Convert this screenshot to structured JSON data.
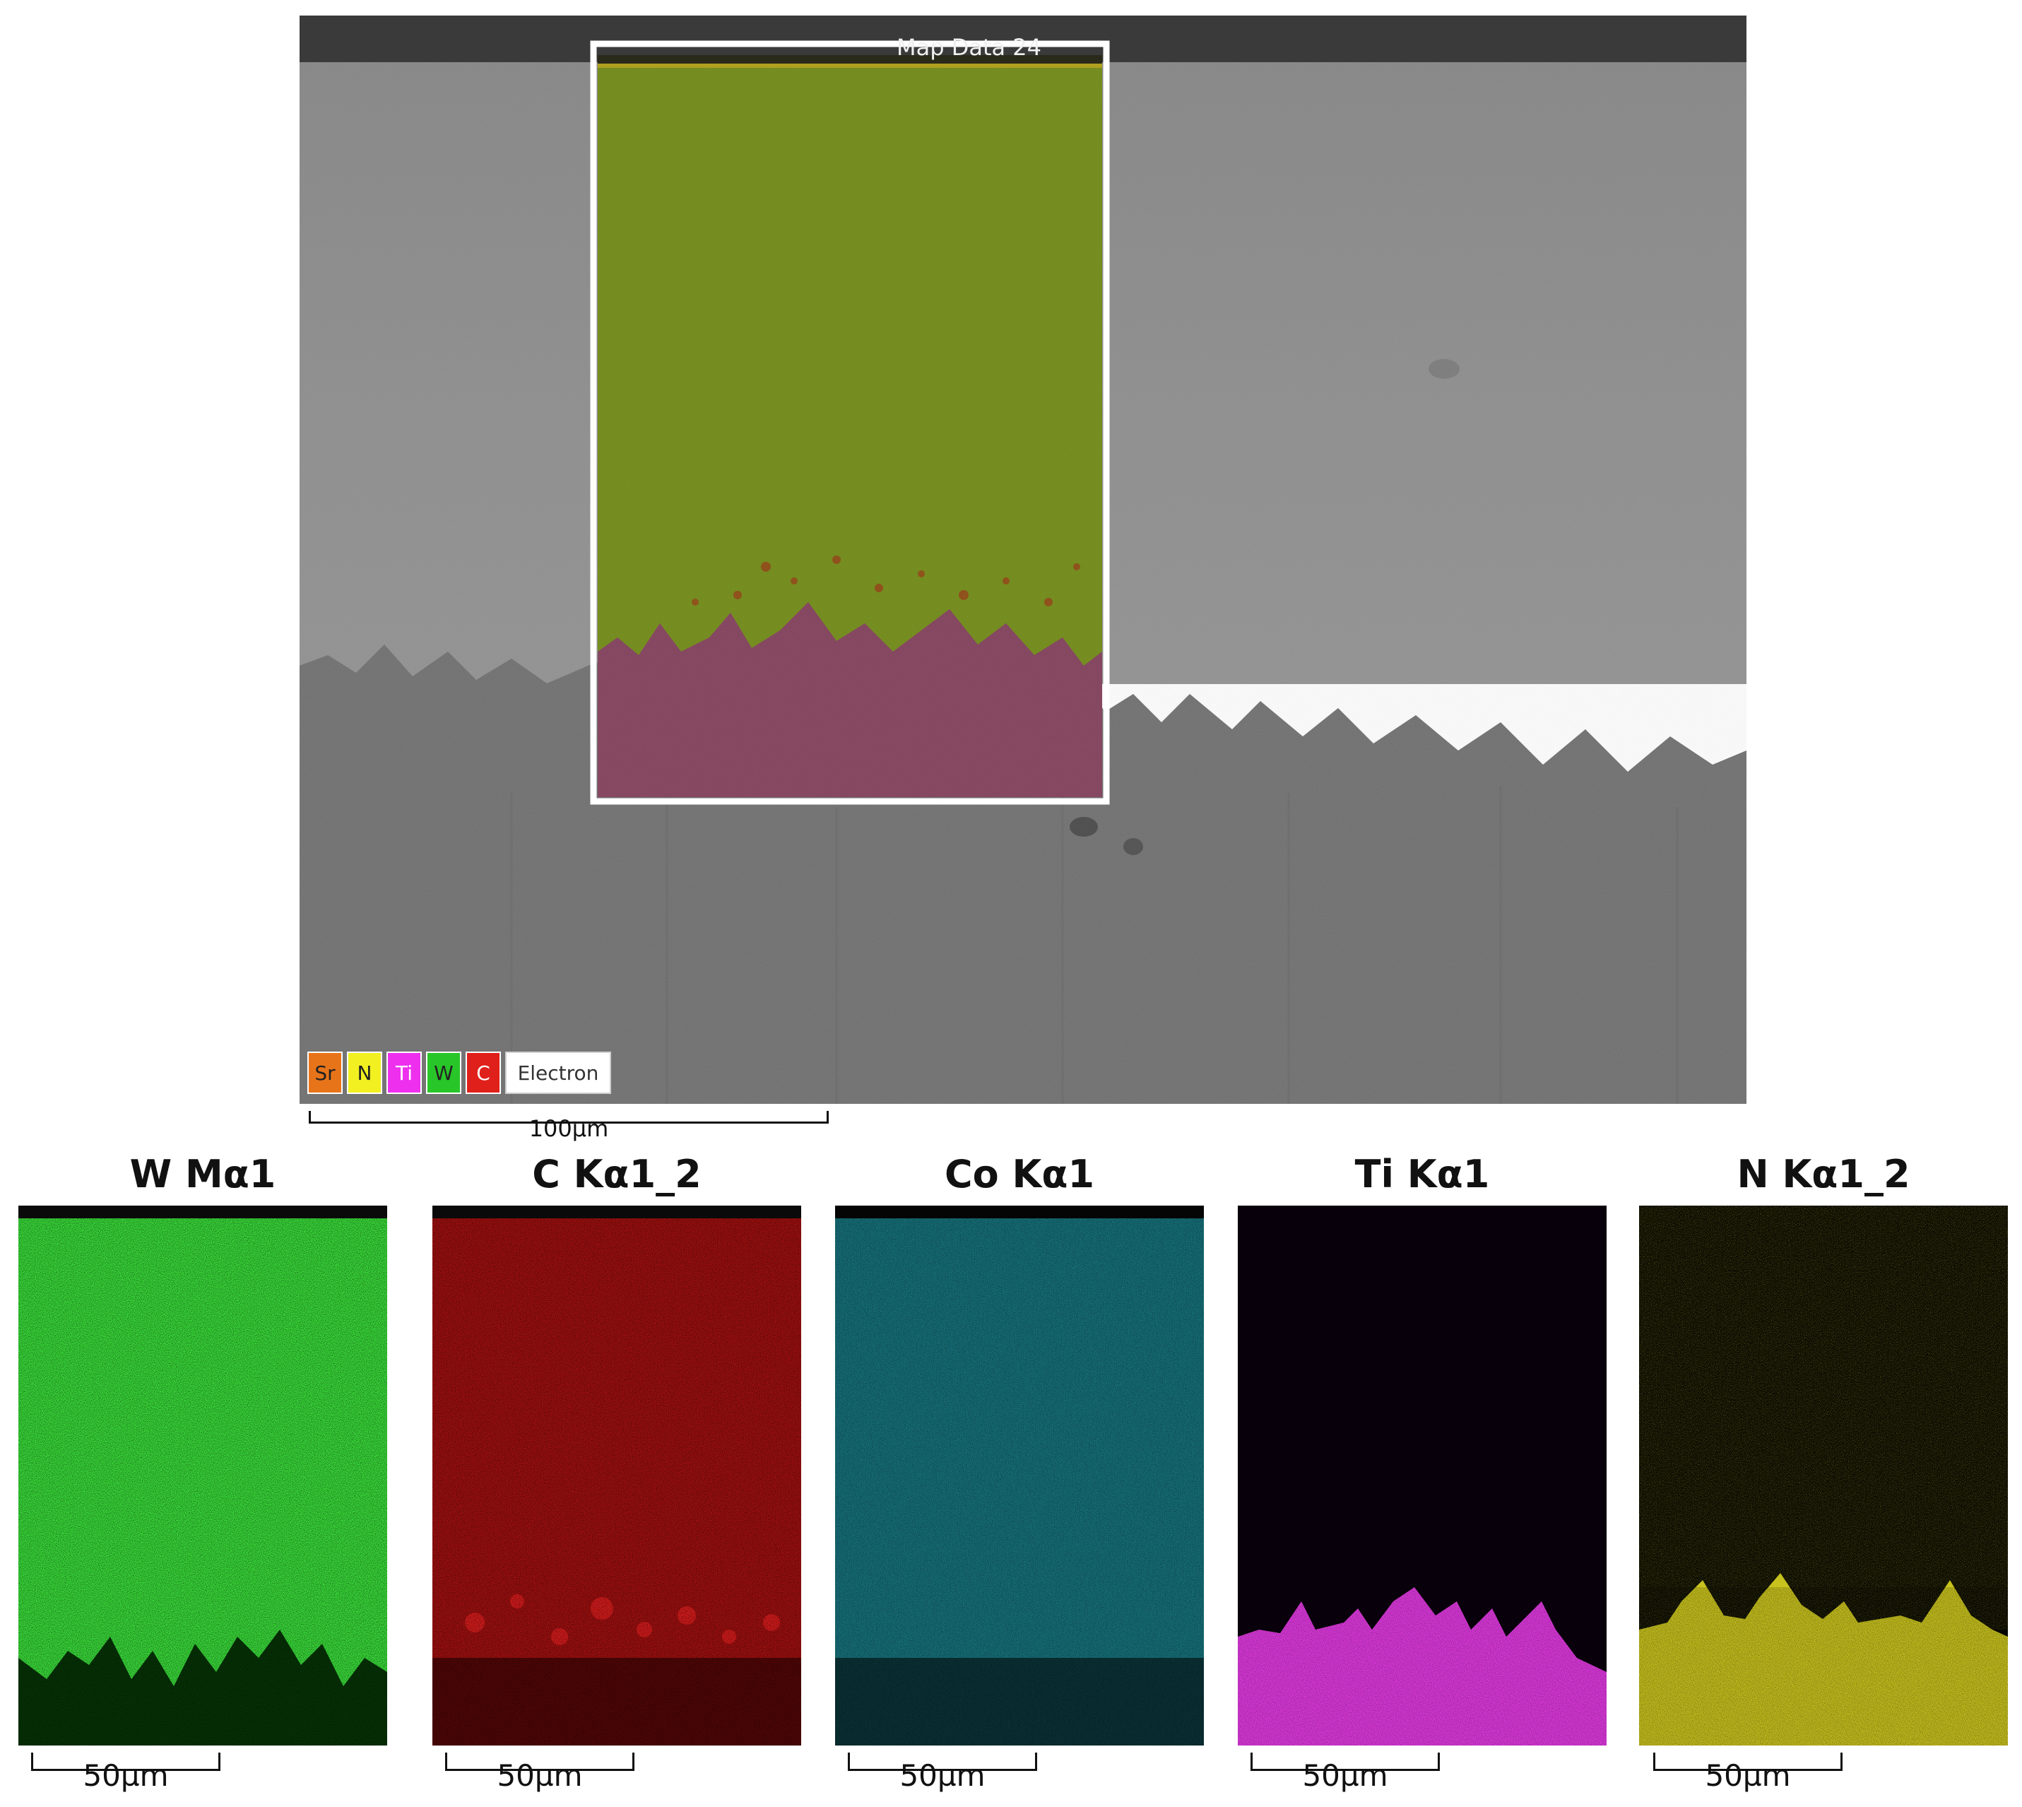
{
  "sem_image": {
    "map_title": "Map Data 24",
    "legend": [
      {
        "label": "Sr",
        "color": "#e8741a"
      },
      {
        "label": "N",
        "color": "#f2f020"
      },
      {
        "label": "Ti",
        "color": "#ee30ee"
      },
      {
        "label": "W",
        "color": "#29c629"
      },
      {
        "label": "C",
        "color": "#e0201a"
      }
    ],
    "electron_label": "Electron",
    "scale_bar_label": "100µm"
  },
  "element_maps": [
    {
      "title": "W Mα1",
      "scale_label": "50µm",
      "color": "#3ce63c"
    },
    {
      "title": "C Kα1_2",
      "scale_label": "50µm",
      "color": "#d81818"
    },
    {
      "title": "Co Kα1",
      "scale_label": "50µm",
      "color": "#2ab8c0"
    },
    {
      "title": "Ti Kα1",
      "scale_label": "50µm",
      "color": "#e23ae2"
    },
    {
      "title": "N Kα1_2",
      "scale_label": "50µm",
      "color": "#c8c21e"
    }
  ]
}
